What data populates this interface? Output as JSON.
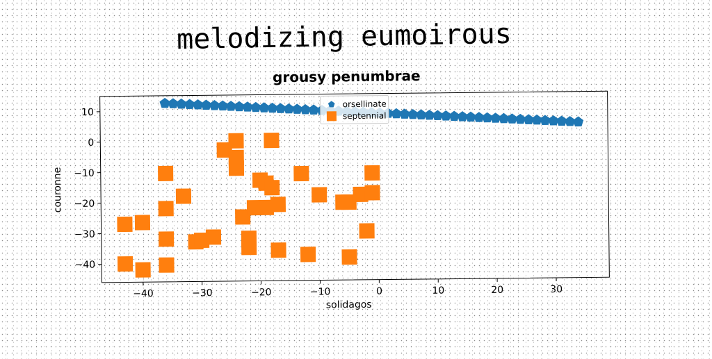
{
  "super_title": "melodizing eumoirous",
  "chart_data": {
    "type": "scatter",
    "title": "grousy penumbrae",
    "xlabel": "solidagos",
    "ylabel": "couronne",
    "xlim": [
      -47,
      39
    ],
    "ylim": [
      -46,
      15
    ],
    "xticks": [
      -40,
      -30,
      -20,
      -10,
      0,
      10,
      20,
      30
    ],
    "xtick_labels": [
      "−40",
      "−30",
      "−20",
      "−10",
      "0",
      "10",
      "20",
      "30"
    ],
    "yticks": [
      10,
      0,
      -10,
      -20,
      -30,
      -40
    ],
    "ytick_labels": [
      "10",
      "0",
      "−10",
      "−20",
      "−30",
      "−40"
    ],
    "grid": false,
    "legend_position": "top-center",
    "series": [
      {
        "name": "orsellinate",
        "marker": "pentagon",
        "color": "#1f77b4",
        "x": [
          -36,
          -34.6,
          -33.2,
          -31.8,
          -30.4,
          -29,
          -27.6,
          -26.2,
          -24.8,
          -23.4,
          -22,
          -20.6,
          -19.2,
          -17.8,
          -16.4,
          -15,
          -13.6,
          -12.2,
          -10.8,
          -9.4,
          -8,
          -6.6,
          -5.2,
          -3.8,
          -2.4,
          -1,
          0.4,
          1.8,
          3.2,
          4.6,
          6,
          7.4,
          8.8,
          10.2,
          11.6,
          13,
          14.4,
          15.8,
          17.2,
          18.6,
          20,
          21.4,
          22.8,
          24.2,
          25.6,
          27,
          28.4,
          29.8,
          31.2,
          32.6,
          34
        ],
        "y": [
          12.5,
          12.35,
          12.2,
          12.05,
          11.9,
          11.75,
          11.6,
          11.45,
          11.3,
          11.15,
          11,
          10.85,
          10.7,
          10.55,
          10.4,
          10.25,
          10.1,
          9.95,
          9.8,
          9.65,
          9.5,
          9.35,
          9.2,
          9.05,
          8.9,
          8.75,
          8.6,
          8.45,
          8.3,
          8.15,
          8,
          7.85,
          7.7,
          7.55,
          7.4,
          7.25,
          7.1,
          6.95,
          6.8,
          6.65,
          6.5,
          6.35,
          6.2,
          6.05,
          5.9,
          5.75,
          5.6,
          5.45,
          5.3,
          5.15,
          5
        ]
      },
      {
        "name": "septennial",
        "marker": "square",
        "color": "#ff7f0e",
        "x": [
          -43,
          -40,
          -36,
          -36,
          -36,
          -33,
          -43,
          -40,
          -36,
          -31,
          -30,
          -28,
          -26,
          -24,
          -24,
          -24,
          -23,
          -22,
          -22,
          -21,
          -20,
          -19,
          -19,
          -18,
          -18,
          -17,
          -17,
          -12,
          -13,
          -10,
          -6,
          -5,
          -5,
          -3,
          -2,
          -1,
          -1
        ],
        "y": [
          -40,
          -42,
          -40.5,
          -32,
          -22,
          -18,
          -27,
          -26.5,
          -10.5,
          -33,
          -32.5,
          -31.5,
          -3,
          0,
          -5.5,
          -9,
          -25,
          -32,
          -35,
          -22,
          -13,
          -14,
          -22,
          -15.5,
          0,
          -21,
          -36,
          -37.5,
          -11,
          -18,
          -20.5,
          -20.5,
          -38.5,
          -18,
          -30,
          -11,
          -17.5
        ]
      }
    ]
  }
}
